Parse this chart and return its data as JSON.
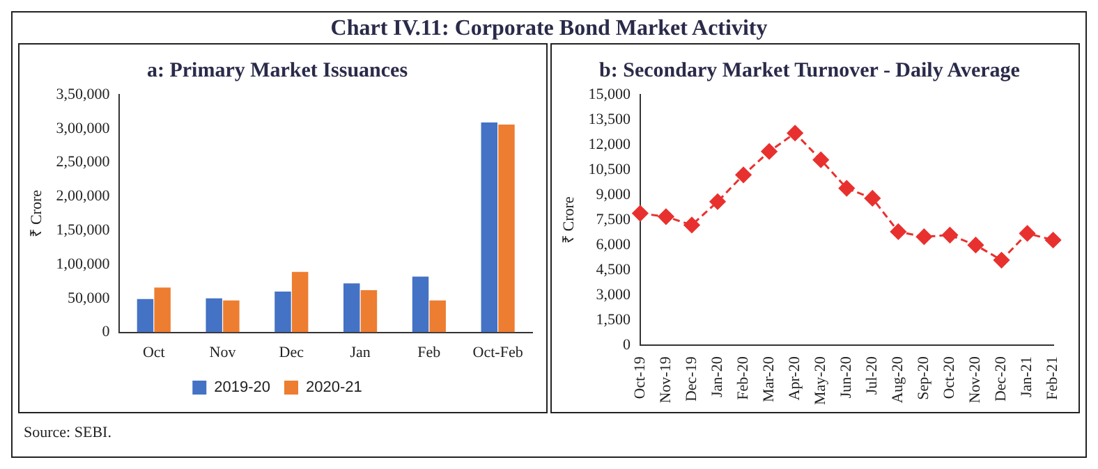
{
  "chart_data": [
    {
      "type": "bar",
      "title": "a: Primary Market Issuances",
      "ylabel": "₹ Crore",
      "annotations": [
        "Chart IV.11: Corporate Bond Market Activity",
        "Source: SEBI."
      ],
      "categories": [
        "Oct",
        "Nov",
        "Dec",
        "Jan",
        "Feb",
        "Oct-Feb"
      ],
      "series": [
        {
          "name": "2019-20",
          "color": "#4472c4",
          "values": [
            49000,
            50000,
            60000,
            72000,
            82000,
            309000
          ]
        },
        {
          "name": "2020-21",
          "color": "#ed7d31",
          "values": [
            66000,
            47000,
            89000,
            62000,
            47000,
            306000
          ]
        }
      ],
      "ylim": [
        0,
        350000
      ],
      "yticks": [
        0,
        {
          "value": 50000,
          "label": "50,000"
        },
        {
          "value": 100000,
          "label": "1,00,000"
        },
        {
          "value": 150000,
          "label": "1,50,000"
        },
        {
          "value": 200000,
          "label": "2,00,000"
        },
        {
          "value": 250000,
          "label": "2,50,000"
        },
        {
          "value": 300000,
          "label": "3,00,000"
        },
        {
          "value": 350000,
          "label": "3,50,000"
        }
      ],
      "grid": false,
      "legend": "bottom"
    },
    {
      "type": "line",
      "title": "b: Secondary Market Turnover - Daily Average",
      "ylabel": "₹ Crore",
      "categories": [
        "Oct-19",
        "Nov-19",
        "Dec-19",
        "Jan-20",
        "Feb-20",
        "Mar-20",
        "Apr-20",
        "May-20",
        "Jun-20",
        "Jul-20",
        "Aug-20",
        "Sep-20",
        "Oct-20",
        "Nov-20",
        "Dec-20",
        "Jan-21",
        "Feb-21"
      ],
      "series": [
        {
          "color": "#e8312f",
          "values": [
            7900,
            7700,
            7200,
            8600,
            10200,
            11600,
            12700,
            11100,
            9400,
            8800,
            6800,
            6500,
            6600,
            6000,
            5100,
            6700,
            6300
          ]
        }
      ],
      "ylim": [
        0,
        15000
      ],
      "yticks": [
        0,
        {
          "value": 1500,
          "label": "1,500"
        },
        {
          "value": 3000,
          "label": "3,000"
        },
        {
          "value": 4500,
          "label": "4,500"
        },
        {
          "value": 6000,
          "label": "6,000"
        },
        {
          "value": 7500,
          "label": "7,500"
        },
        {
          "value": 9000,
          "label": "9,000"
        },
        {
          "value": 10500,
          "label": "10,500"
        },
        {
          "value": 12000,
          "label": "12,000"
        },
        {
          "value": 13500,
          "label": "13,500"
        },
        {
          "value": 15000,
          "label": "15,000"
        }
      ],
      "grid": false,
      "legend": false,
      "marker": "diamond",
      "line_style": "dashed"
    }
  ]
}
